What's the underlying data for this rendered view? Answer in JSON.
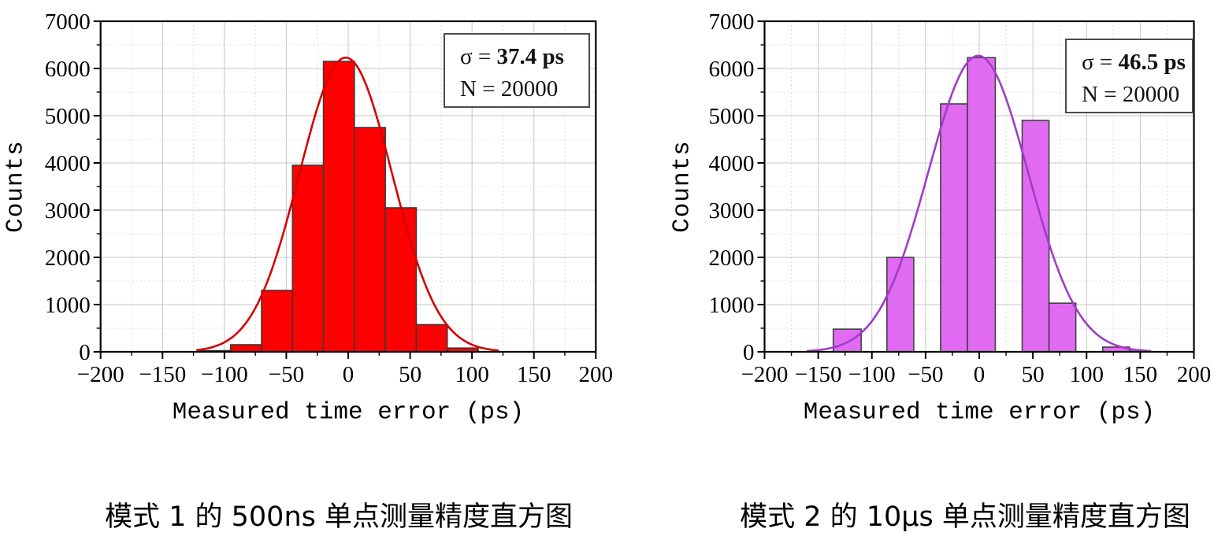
{
  "figure": {
    "background": "#ffffff",
    "spine_color": "#000000",
    "grid_major_color": "#c6c6c6",
    "grid_minor_color": "#dcdcdc",
    "tick_label_color": "#000000"
  },
  "chart_data": [
    {
      "type": "bar",
      "variant": "histogram with gaussian fit",
      "caption": "模式 1 的 500ns 单点测量精度直方图",
      "xlabel": "Measured time error (ps)",
      "ylabel": "Counts",
      "xlim": [
        -200,
        200
      ],
      "ylim": [
        0,
        7000
      ],
      "grid": true,
      "legend_position": "upper right",
      "x_major_ticks": [
        -200,
        -150,
        -100,
        -50,
        0,
        50,
        100,
        150,
        200
      ],
      "x_tick_labels": [
        "−200",
        "−150",
        "−100",
        "−50",
        "0",
        "50",
        "100",
        "150",
        "200"
      ],
      "x_minor_step": 25,
      "y_major_ticks": [
        0,
        1000,
        2000,
        3000,
        4000,
        5000,
        6000,
        7000
      ],
      "y_tick_labels": [
        "0",
        "1000",
        "2000",
        "3000",
        "4000",
        "5000",
        "6000",
        "7000"
      ],
      "y_minor_step": 500,
      "bars": [
        {
          "x0": -120,
          "x1": -95,
          "count": 25
        },
        {
          "x0": -95,
          "x1": -70,
          "count": 150
        },
        {
          "x0": -70,
          "x1": -45,
          "count": 1300
        },
        {
          "x0": -45,
          "x1": -20,
          "count": 3950
        },
        {
          "x0": -20,
          "x1": 5,
          "count": 6150
        },
        {
          "x0": 5,
          "x1": 30,
          "count": 4750
        },
        {
          "x0": 30,
          "x1": 55,
          "count": 3050
        },
        {
          "x0": 55,
          "x1": 80,
          "count": 575
        },
        {
          "x0": 80,
          "x1": 105,
          "count": 80
        }
      ],
      "fit": {
        "type": "gaussian",
        "amplitude": 6230,
        "mean": -2,
        "sigma_ps": 37.4,
        "draw_from": -122,
        "draw_to": 122
      },
      "legend": {
        "sigma_prefix": "σ = ",
        "sigma_value": "37.4 ps",
        "n_text": "N = 20000"
      },
      "colors": {
        "bar_fill": "#fe0000",
        "bar_edge": "#3a3a3a",
        "curve": "#d60000"
      }
    },
    {
      "type": "bar",
      "variant": "histogram with gaussian fit",
      "caption": "模式 2 的 10μs 单点测量精度直方图",
      "xlabel": "Measured time error (ps)",
      "ylabel": "Counts",
      "xlim": [
        -200,
        200
      ],
      "ylim": [
        0,
        7000
      ],
      "grid": true,
      "legend_position": "upper right",
      "x_major_ticks": [
        -200,
        -150,
        -100,
        -50,
        0,
        50,
        100,
        150,
        200
      ],
      "x_tick_labels": [
        "−200",
        "−150",
        "−100",
        "−50",
        "0",
        "50",
        "100",
        "150",
        "200"
      ],
      "x_minor_step": 25,
      "y_major_ticks": [
        0,
        1000,
        2000,
        3000,
        4000,
        5000,
        6000,
        7000
      ],
      "y_tick_labels": [
        "0",
        "1000",
        "2000",
        "3000",
        "4000",
        "5000",
        "6000",
        "7000"
      ],
      "y_minor_step": 500,
      "bars": [
        {
          "x0": -136,
          "x1": -110,
          "count": 480
        },
        {
          "x0": -86,
          "x1": -61,
          "count": 2000
        },
        {
          "x0": -36,
          "x1": -11,
          "count": 5250
        },
        {
          "x0": -11,
          "x1": 15,
          "count": 6230
        },
        {
          "x0": 40,
          "x1": 65,
          "count": 4900
        },
        {
          "x0": 65,
          "x1": 90,
          "count": 1030
        },
        {
          "x0": 115,
          "x1": 140,
          "count": 100
        },
        {
          "x0": 140,
          "x1": 152,
          "count": 40
        }
      ],
      "fit": {
        "type": "gaussian",
        "amplitude": 6270,
        "mean": -1,
        "sigma_ps": 46.5,
        "draw_from": -160,
        "draw_to": 160
      },
      "legend": {
        "sigma_prefix": "σ = ",
        "sigma_value": "46.5 ps",
        "n_text": "N = 20000"
      },
      "colors": {
        "bar_fill": "#e16af2",
        "bar_edge": "#414141",
        "curve": "#a03cc8"
      }
    }
  ]
}
